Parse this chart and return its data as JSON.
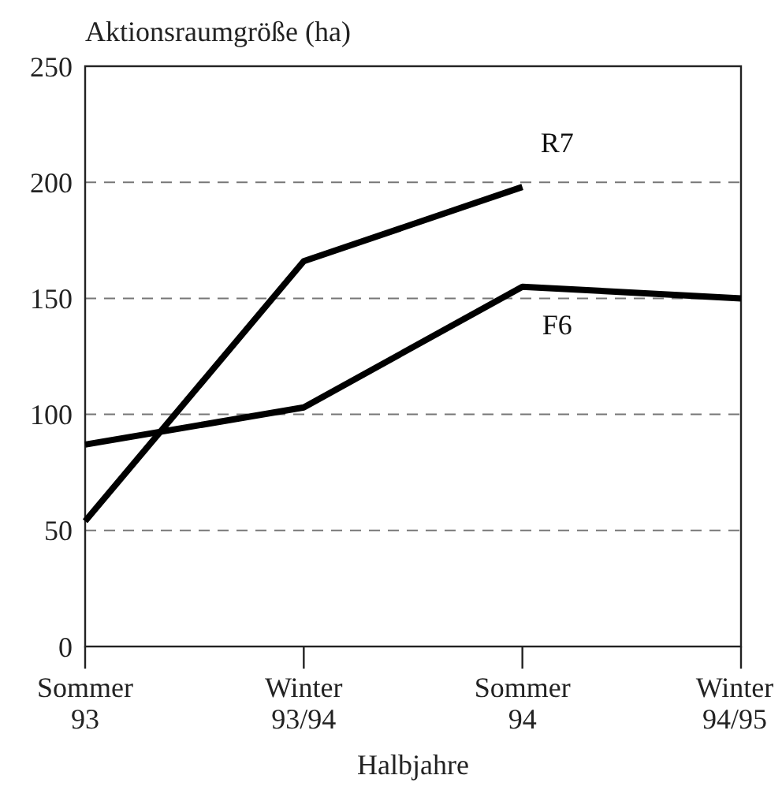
{
  "chart_data": {
    "type": "line",
    "ylabel": "Aktionsraumgröße (ha)",
    "xlabel": "Halbjahre",
    "categories": [
      "Sommer 93",
      "Winter 93/94",
      "Sommer 94",
      "Winter 94/95"
    ],
    "series": [
      {
        "name": "R7",
        "color": "#000000",
        "values": [
          54,
          166,
          198,
          null
        ]
      },
      {
        "name": "F6",
        "color": "#000000",
        "values": [
          87,
          103,
          155,
          150
        ]
      }
    ],
    "ylim": [
      0,
      250
    ],
    "yticks": [
      0,
      50,
      100,
      150,
      200,
      250
    ],
    "grid": "y",
    "marker": "none",
    "line_style": "solid"
  }
}
